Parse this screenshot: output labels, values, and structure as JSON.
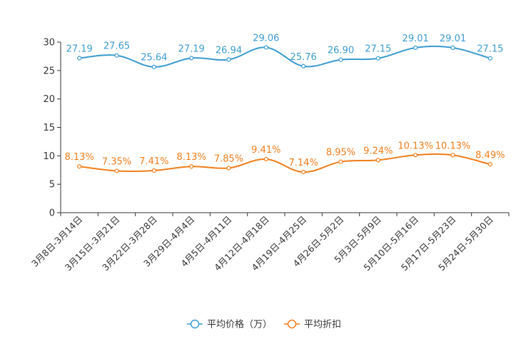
{
  "chart_data": {
    "type": "line",
    "categories": [
      "3月8日-3月14日",
      "3月15日-3月21日",
      "3月22日-3月28日",
      "3月29日-4月4日",
      "4月5日-4月11日",
      "4月12日-4月18日",
      "4月19日-4月25日",
      "4月26日-5月2日",
      "5月3日-5月9日",
      "5月10日-5月16日",
      "5月17日-5月23日",
      "5月24日-5月30日"
    ],
    "ylim": [
      0,
      30
    ],
    "yticks": [
      0,
      5,
      10,
      15,
      20,
      25,
      30
    ],
    "series": [
      {
        "name": "平均价格（万）",
        "color": "#3a9bd0",
        "values": [
          27.19,
          27.65,
          25.64,
          27.19,
          26.94,
          29.06,
          25.76,
          26.9,
          27.15,
          29.01,
          29.01,
          27.15
        ],
        "labels": [
          "27.19",
          "27.65",
          "25.64",
          "27.19",
          "26.94",
          "29.06",
          "25.76",
          "26.90",
          "27.15",
          "29.01",
          "29.01",
          "27.15"
        ]
      },
      {
        "name": "平均折扣",
        "color": "#f07d1a",
        "values": [
          8.13,
          7.35,
          7.41,
          8.13,
          7.85,
          9.41,
          7.14,
          8.95,
          9.24,
          10.13,
          10.13,
          8.49
        ],
        "labels": [
          "8.13%",
          "7.35%",
          "7.41%",
          "8.13%",
          "7.85%",
          "9.41%",
          "7.14%",
          "8.95%",
          "9.24%",
          "10.13%",
          "10.13%",
          "8.49%"
        ]
      }
    ],
    "legend_position": "bottom-center"
  }
}
